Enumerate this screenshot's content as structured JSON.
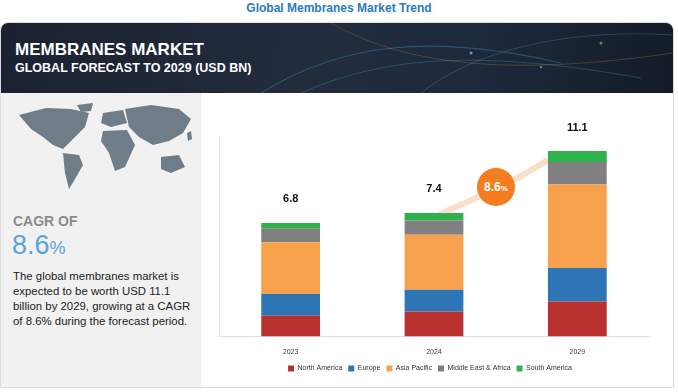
{
  "page": {
    "heading": "Global Membranes Market Trend",
    "banner_title": "MEMBRANES MARKET",
    "banner_subtitle": "GLOBAL FORECAST TO 2029 (USD BN)",
    "cagr_label": "CAGR OF",
    "cagr_value": "8.6%",
    "summary": "The global membranes market is expected to be worth USD 11.1 billion by 2029, growing at a CAGR of 8.6% during the forecast period."
  },
  "chart_data": {
    "type": "bar",
    "stacked": true,
    "categories": [
      "2023",
      "2024",
      "2029"
    ],
    "series": [
      {
        "name": "North America",
        "color": "#b8312f",
        "values": [
          1.25,
          1.5,
          2.1
        ]
      },
      {
        "name": "Europe",
        "color": "#2e75b6",
        "values": [
          1.3,
          1.3,
          2.0
        ]
      },
      {
        "name": "Asia Pacific",
        "color": "#f7a14c",
        "values": [
          3.1,
          3.3,
          5.0
        ]
      },
      {
        "name": "Middle East & Africa",
        "color": "#808080",
        "values": [
          0.8,
          0.85,
          1.35
        ]
      },
      {
        "name": "South America",
        "color": "#2db34a",
        "values": [
          0.35,
          0.45,
          0.65
        ]
      }
    ],
    "totals": [
      6.8,
      7.4,
      11.1
    ],
    "annotations": [
      "8.6%"
    ],
    "ylim": [
      0,
      12
    ],
    "grid": false,
    "tick_labels": "x",
    "legend": "bottom"
  }
}
